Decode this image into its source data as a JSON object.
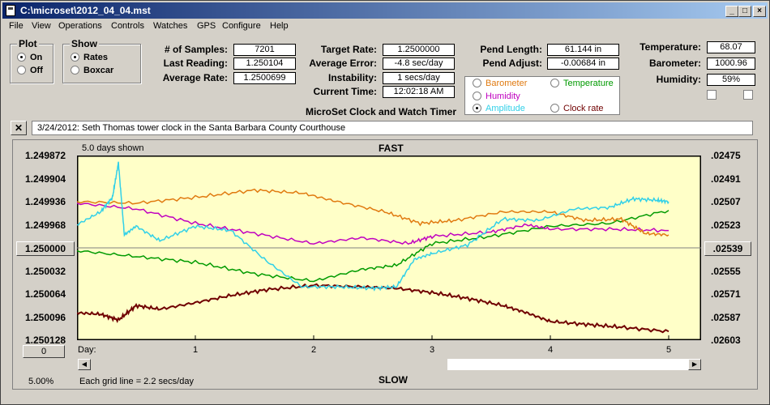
{
  "window": {
    "title": "C:\\microset\\2012_04_04.mst"
  },
  "menu": [
    "File",
    "View",
    "Operations",
    "Controls",
    "Watches",
    "GPS",
    "Configure",
    "Help"
  ],
  "plot_group": {
    "title": "Plot",
    "options": [
      "On",
      "Off"
    ],
    "selected": "On"
  },
  "show_group": {
    "title": "Show",
    "options": [
      "Rates",
      "Boxcar"
    ],
    "selected": "Rates"
  },
  "stats": {
    "samples_label": "# of Samples:",
    "samples": "7201",
    "last_label": "Last Reading:",
    "last": "1.250104",
    "avg_label": "Average Rate:",
    "avg": "1.2500699",
    "target_label": "Target Rate:",
    "target": "1.2500000",
    "error_label": "Average Error:",
    "error": "-4.8 sec/day",
    "instab_label": "Instability:",
    "instab": "1 secs/day",
    "time_label": "Current Time:",
    "time": "12:02:18 AM",
    "pend_len_label": "Pend Length:",
    "pend_len": "61.144 in",
    "pend_adj_label": "Pend Adjust:",
    "pend_adj": "-0.00684 in",
    "temp_label": "Temperature:",
    "temp": "68.07",
    "baro_label": "Barometer:",
    "baro": "1000.96",
    "hum_label": "Humidity:",
    "hum": "59%"
  },
  "app_caption": "MicroSet Clock and Watch Timer",
  "overlays": {
    "barometer": "Barometer",
    "temperature": "Temperature",
    "humidity": "Humidity",
    "amplitude": "Amplitude",
    "clock_rate": "Clock rate",
    "selected": "Amplitude"
  },
  "colors": {
    "barometer": "#e07a10",
    "temperature": "#009a00",
    "humidity": "#c000c0",
    "amplitude": "#30d0e8",
    "clock_rate": "#700000",
    "plot_bg": "#ffffc8"
  },
  "note": "3/24/2012: Seth Thomas tower clock in the Santa Barbara County Courthouse",
  "chart": {
    "days_shown": "5.0 days shown",
    "fast": "FAST",
    "slow": "SLOW",
    "center_btn": "1.250000",
    "right_btn": ".02539",
    "zero_btn": "0",
    "percent": "5.00%",
    "grid_note": "Each grid line = 2.2 secs/day",
    "day_label": "Day:",
    "left_ticks": [
      "1.249872",
      "1.249904",
      "1.249936",
      "1.249968",
      "1.250032",
      "1.250064",
      "1.250096",
      "1.250128"
    ],
    "right_ticks": [
      ".02475",
      ".02491",
      ".02507",
      ".02523",
      ".02555",
      ".02571",
      ".02587",
      ".02603"
    ],
    "x_ticks": [
      "1",
      "2",
      "3",
      "4",
      "5"
    ]
  },
  "chart_data": {
    "type": "line",
    "xlabel": "Day:",
    "xlim": [
      0,
      5.0
    ],
    "ylim": [
      1.250128,
      1.249872
    ],
    "y2lim": [
      0.02603,
      0.02475
    ],
    "series": [
      {
        "name": "Clock rate",
        "color": "#700000",
        "x": [
          0,
          0.2,
          0.35,
          0.5,
          0.7,
          1.0,
          1.3,
          1.6,
          2.0,
          2.4,
          2.7,
          3.0,
          3.3,
          3.6,
          3.8,
          4.0,
          4.3,
          4.6,
          5.0
        ],
        "y": [
          1.25009,
          1.250092,
          1.2501,
          1.25008,
          1.250085,
          1.250076,
          1.250066,
          1.250058,
          1.250052,
          1.250054,
          1.250056,
          1.250062,
          1.25007,
          1.25008,
          1.25009,
          1.250102,
          1.250106,
          1.25011,
          1.250116
        ]
      },
      {
        "name": "Temperature",
        "color": "#009a00",
        "x": [
          0,
          0.5,
          1.0,
          1.5,
          2.0,
          2.4,
          2.7,
          3.0,
          3.5,
          4.0,
          4.5,
          5.0
        ],
        "y": [
          0.02541,
          0.02545,
          0.02549,
          0.02557,
          0.02562,
          0.02554,
          0.02551,
          0.02536,
          0.02531,
          0.02524,
          0.02522,
          0.02513
        ]
      },
      {
        "name": "Humidity",
        "color": "#c000c0",
        "x": [
          0,
          0.5,
          1.0,
          1.5,
          2.0,
          2.4,
          2.8,
          3.0,
          3.5,
          3.8,
          4.0,
          4.5,
          5.0
        ],
        "y": [
          0.02508,
          0.02512,
          0.02522,
          0.02529,
          0.02536,
          0.02532,
          0.02536,
          0.02531,
          0.02528,
          0.02523,
          0.02526,
          0.02526,
          0.02527
        ]
      },
      {
        "name": "Barometer",
        "color": "#e07a10",
        "x": [
          0,
          0.5,
          1.0,
          1.5,
          1.9,
          2.2,
          2.6,
          2.9,
          3.2,
          3.6,
          4.0,
          4.3,
          4.6,
          4.8,
          5.0
        ],
        "y": [
          0.02507,
          0.02508,
          0.02504,
          0.02499,
          0.02501,
          0.02507,
          0.02514,
          0.02522,
          0.0252,
          0.02514,
          0.02514,
          0.0252,
          0.02519,
          0.02529,
          0.0253
        ]
      },
      {
        "name": "Amplitude",
        "color": "#30d0e8",
        "x": [
          0,
          0.2,
          0.3,
          0.35,
          0.4,
          0.5,
          0.7,
          1.0,
          1.3,
          1.6,
          1.9,
          2.2,
          2.5,
          2.7,
          2.85,
          3.0,
          3.3,
          3.6,
          3.9,
          4.2,
          4.5,
          4.7,
          4.9,
          5.0
        ],
        "y": [
          0.02523,
          0.02514,
          0.02504,
          0.0248,
          0.0253,
          0.02524,
          0.02534,
          0.02524,
          0.02527,
          0.02548,
          0.02566,
          0.02566,
          0.02567,
          0.02566,
          0.02547,
          0.02543,
          0.02537,
          0.02519,
          0.0252,
          0.02512,
          0.02511,
          0.02505,
          0.02506,
          0.02507
        ]
      }
    ]
  }
}
